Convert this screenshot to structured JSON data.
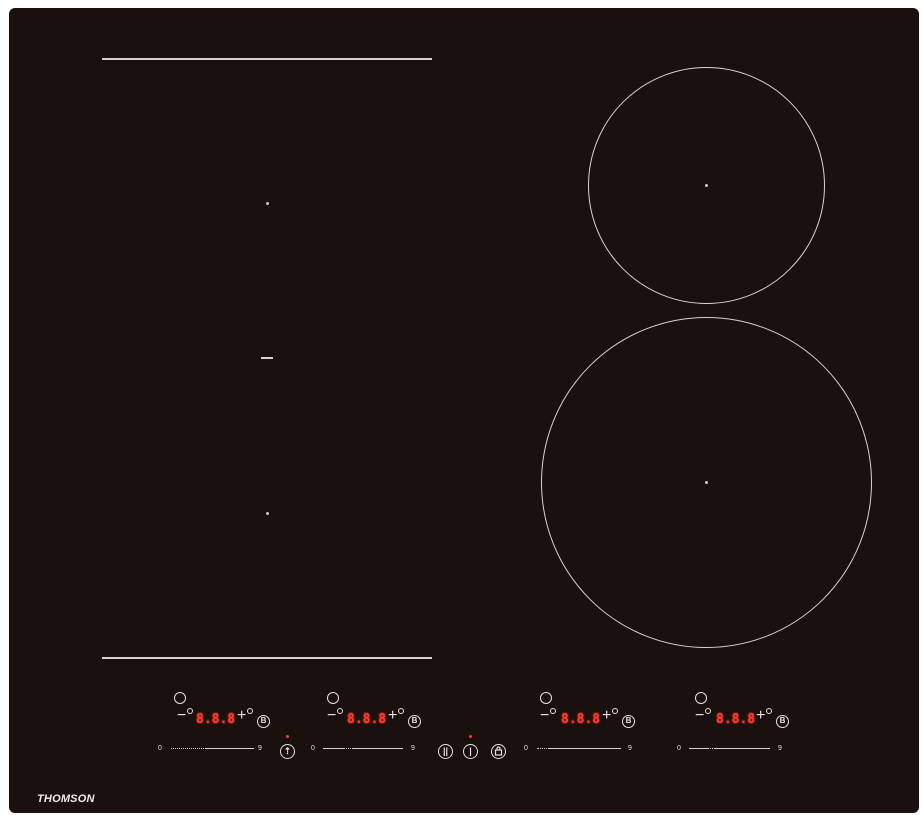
{
  "brand": {
    "logo": "THOMSON"
  },
  "colors": {
    "glass": "#1a100e",
    "lines": "#d8d2cf",
    "led_red": "#ff3b30"
  },
  "zones": [
    {
      "display": "8.8.8",
      "scale_min": "0",
      "scale_max": "9",
      "boost_label": "B"
    },
    {
      "display": "8.8.8",
      "scale_min": "0",
      "scale_max": "9",
      "boost_label": "B"
    },
    {
      "display": "8.8.8",
      "scale_min": "0",
      "scale_max": "9",
      "boost_label": "B"
    },
    {
      "display": "8.8.8",
      "scale_min": "0",
      "scale_max": "9",
      "boost_label": "B"
    }
  ],
  "controls": {
    "bridge_icon": "bridge-icon",
    "pause_icon": "pause-icon",
    "power_icon": "power-icon",
    "lock_icon": "lock-icon"
  }
}
